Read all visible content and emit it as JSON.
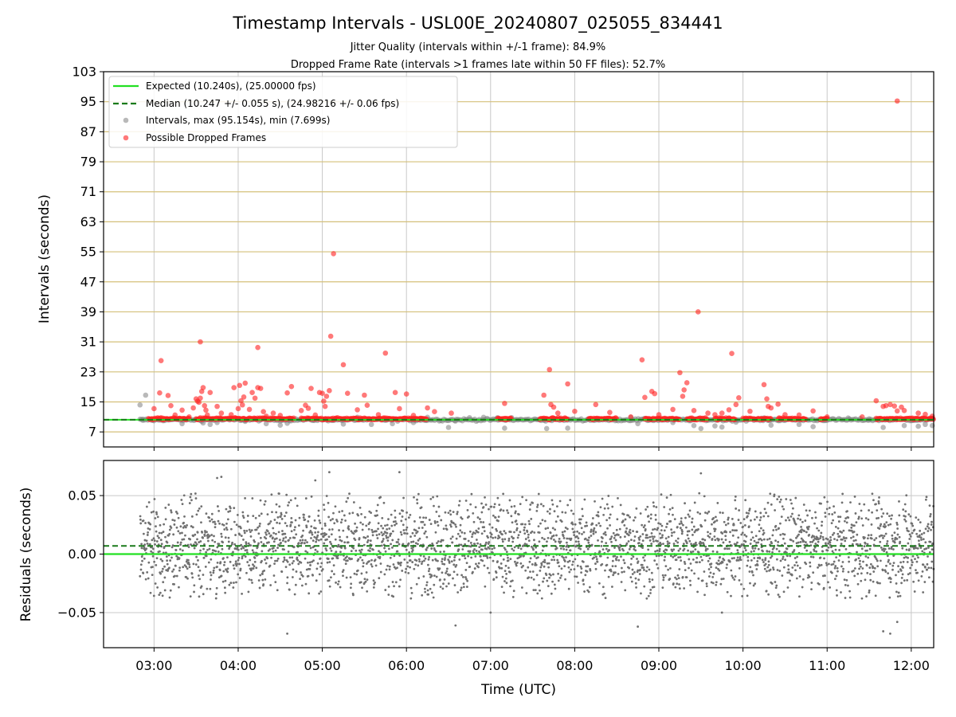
{
  "chart_data": [
    {
      "type": "scatter",
      "title": "Timestamp Intervals - USL00E_20240807_025055_834441",
      "subtitle_lines": [
        "Jitter Quality (intervals within +/-1 frame): 84.9%",
        "Dropped Frame Rate (intervals >1 frames late within 50 FF files): 52.7%"
      ],
      "xlabel": "",
      "ylabel": "Intervals (seconds)",
      "xlim": [
        "02:24",
        "12:16"
      ],
      "ylim": [
        3,
        103
      ],
      "yticks": [
        7,
        15,
        23,
        31,
        39,
        47,
        55,
        63,
        71,
        79,
        87,
        95,
        103
      ],
      "ytick_labels": [
        "7",
        "15",
        "23",
        "31",
        "39",
        "47",
        "55",
        "63",
        "71",
        "79",
        "87",
        "95",
        "103"
      ],
      "grid": true,
      "horizontal_lines": {
        "values": [
          7,
          15,
          23,
          31,
          39,
          47,
          55,
          63,
          71,
          79,
          87,
          95
        ],
        "color": "#d4c07a"
      },
      "legend": {
        "position": "upper-left",
        "entries": [
          {
            "label": "Expected (10.240s), (25.00000 fps)",
            "kind": "solid-line",
            "color": "#22e022"
          },
          {
            "label": "Median (10.247 +/- 0.055 s), (24.98216 +/- 0.06 fps)",
            "kind": "dashed-line",
            "color": "#1a7a1a"
          },
          {
            "label": "Intervals, max (95.154s), min (7.699s)",
            "kind": "marker",
            "color": "#808080"
          },
          {
            "label": "Possible Dropped Frames",
            "kind": "marker",
            "color": "#ff2020"
          }
        ]
      },
      "reference_lines": {
        "expected": 10.24,
        "median": 10.247
      },
      "series": [
        {
          "name": "Intervals, max (95.154s), min (7.699s)",
          "color": "#808080",
          "points": [
            [
              "02:50",
              14.2
            ],
            [
              "02:54",
              16.8
            ],
            [
              "02:52",
              10.1
            ],
            [
              "03:00",
              10.0
            ],
            [
              "03:20",
              9.2
            ],
            [
              "03:35",
              9.4
            ],
            [
              "03:40",
              9.0
            ],
            [
              "03:45",
              9.5
            ],
            [
              "04:05",
              9.8
            ],
            [
              "04:20",
              9.2
            ],
            [
              "04:30",
              8.8
            ],
            [
              "04:35",
              9.3
            ],
            [
              "05:15",
              9.1
            ],
            [
              "05:25",
              10.9
            ],
            [
              "05:35",
              9.0
            ],
            [
              "05:50",
              9.2
            ],
            [
              "06:05",
              9.5
            ],
            [
              "06:15",
              10.9
            ],
            [
              "06:30",
              8.2
            ],
            [
              "06:35",
              9.9
            ],
            [
              "06:45",
              10.8
            ],
            [
              "06:55",
              10.9
            ],
            [
              "07:05",
              10.8
            ],
            [
              "07:10",
              8.0
            ],
            [
              "07:15",
              10.8
            ],
            [
              "07:40",
              7.9
            ],
            [
              "07:55",
              8.0
            ],
            [
              "08:10",
              10.5
            ],
            [
              "08:25",
              10.4
            ],
            [
              "08:40",
              10.9
            ],
            [
              "08:45",
              9.2
            ],
            [
              "09:10",
              9.5
            ],
            [
              "09:25",
              8.7
            ],
            [
              "09:30",
              7.9
            ],
            [
              "09:40",
              8.6
            ],
            [
              "09:45",
              8.3
            ],
            [
              "09:55",
              9.6
            ],
            [
              "10:05",
              10.5
            ],
            [
              "10:15",
              10.7
            ],
            [
              "10:20",
              8.8
            ],
            [
              "10:40",
              9.0
            ],
            [
              "10:50",
              8.4
            ],
            [
              "11:00",
              10.6
            ],
            [
              "11:15",
              10.7
            ],
            [
              "11:30",
              10.5
            ],
            [
              "11:40",
              8.2
            ],
            [
              "11:55",
              8.7
            ],
            [
              "12:05",
              8.5
            ],
            [
              "12:10",
              9.0
            ],
            [
              "12:15",
              8.7
            ]
          ]
        },
        {
          "name": "Possible Dropped Frames",
          "color": "#ff2020",
          "band": {
            "value": 10.5,
            "segments": [
              [
                "02:56",
                "03:25"
              ],
              [
                "03:30",
                "04:40"
              ],
              [
                "04:45",
                "06:15"
              ],
              [
                "07:05",
                "07:15"
              ],
              [
                "07:35",
                "07:55"
              ],
              [
                "08:10",
                "08:30"
              ],
              [
                "08:50",
                "09:15"
              ],
              [
                "09:20",
                "09:35"
              ],
              [
                "09:40",
                "09:55"
              ],
              [
                "10:00",
                "10:20"
              ],
              [
                "10:25",
                "10:45"
              ],
              [
                "10:55",
                "11:00"
              ],
              [
                "11:35",
                "12:16"
              ]
            ]
          },
          "points": [
            [
              "03:05",
              26.0
            ],
            [
              "03:04",
              17.4
            ],
            [
              "03:10",
              16.7
            ],
            [
              "03:12",
              14.0
            ],
            [
              "03:00",
              13.2
            ],
            [
              "03:15",
              11.5
            ],
            [
              "03:20",
              12.8
            ],
            [
              "03:25",
              11.0
            ],
            [
              "03:28",
              13.4
            ],
            [
              "03:30",
              15.8
            ],
            [
              "03:31",
              15.2
            ],
            [
              "03:32",
              14.9
            ],
            [
              "03:33",
              16.0
            ],
            [
              "03:34",
              17.8
            ],
            [
              "03:35",
              18.8
            ],
            [
              "03:36",
              14.0
            ],
            [
              "03:37",
              12.8
            ],
            [
              "03:38",
              11.5
            ],
            [
              "03:33",
              31.0
            ],
            [
              "03:40",
              17.5
            ],
            [
              "03:45",
              13.8
            ],
            [
              "03:48",
              12.0
            ],
            [
              "03:55",
              11.6
            ],
            [
              "04:00",
              13.2
            ],
            [
              "03:57",
              18.8
            ],
            [
              "04:01",
              19.4
            ],
            [
              "04:02",
              15.3
            ],
            [
              "04:03",
              14.2
            ],
            [
              "04:04",
              16.3
            ],
            [
              "04:05",
              20.0
            ],
            [
              "04:08",
              13.0
            ],
            [
              "04:10",
              17.5
            ],
            [
              "04:12",
              16.0
            ],
            [
              "04:14",
              18.8
            ],
            [
              "04:16",
              18.6
            ],
            [
              "04:18",
              12.4
            ],
            [
              "04:20",
              11.2
            ],
            [
              "04:25",
              12.0
            ],
            [
              "04:14",
              29.5
            ],
            [
              "04:30",
              11.4
            ],
            [
              "04:35",
              17.4
            ],
            [
              "04:38",
              19.1
            ],
            [
              "04:45",
              12.7
            ],
            [
              "04:48",
              14.1
            ],
            [
              "04:50",
              13.3
            ],
            [
              "04:52",
              18.6
            ],
            [
              "04:55",
              11.5
            ],
            [
              "04:58",
              17.5
            ],
            [
              "05:00",
              17.3
            ],
            [
              "05:01",
              15.2
            ],
            [
              "05:02",
              13.8
            ],
            [
              "05:03",
              16.5
            ],
            [
              "05:05",
              18.0
            ],
            [
              "05:06",
              32.5
            ],
            [
              "05:08",
              54.5
            ],
            [
              "05:15",
              24.9
            ],
            [
              "05:18",
              17.3
            ],
            [
              "05:25",
              12.9
            ],
            [
              "05:30",
              16.8
            ],
            [
              "05:32",
              14.1
            ],
            [
              "05:40",
              11.6
            ],
            [
              "05:45",
              28.0
            ],
            [
              "05:52",
              17.5
            ],
            [
              "05:55",
              13.2
            ],
            [
              "06:00",
              17.1
            ],
            [
              "06:05",
              11.4
            ],
            [
              "06:15",
              13.4
            ],
            [
              "06:20",
              12.4
            ],
            [
              "06:32",
              12.0
            ],
            [
              "07:10",
              14.6
            ],
            [
              "07:38",
              16.8
            ],
            [
              "07:42",
              23.6
            ],
            [
              "07:43",
              14.3
            ],
            [
              "07:45",
              13.6
            ],
            [
              "07:48",
              12.0
            ],
            [
              "07:55",
              19.8
            ],
            [
              "08:00",
              12.5
            ],
            [
              "08:15",
              14.3
            ],
            [
              "08:25",
              12.2
            ],
            [
              "08:40",
              11.0
            ],
            [
              "08:48",
              26.2
            ],
            [
              "08:50",
              16.2
            ],
            [
              "08:55",
              17.8
            ],
            [
              "08:57",
              17.2
            ],
            [
              "09:00",
              11.6
            ],
            [
              "09:10",
              13.0
            ],
            [
              "09:15",
              22.8
            ],
            [
              "09:17",
              16.5
            ],
            [
              "09:18",
              18.2
            ],
            [
              "09:20",
              20.1
            ],
            [
              "09:25",
              12.7
            ],
            [
              "09:28",
              39.0
            ],
            [
              "09:35",
              12.0
            ],
            [
              "09:40",
              11.6
            ],
            [
              "09:45",
              12.0
            ],
            [
              "09:50",
              12.9
            ],
            [
              "09:52",
              27.9
            ],
            [
              "09:55",
              14.3
            ],
            [
              "09:57",
              16.1
            ],
            [
              "10:05",
              12.5
            ],
            [
              "10:15",
              19.6
            ],
            [
              "10:17",
              15.8
            ],
            [
              "10:18",
              13.8
            ],
            [
              "10:20",
              13.4
            ],
            [
              "10:25",
              14.4
            ],
            [
              "10:30",
              11.6
            ],
            [
              "10:40",
              11.5
            ],
            [
              "10:50",
              12.6
            ],
            [
              "11:00",
              11.0
            ],
            [
              "11:25",
              11.0
            ],
            [
              "11:35",
              15.3
            ],
            [
              "11:40",
              13.8
            ],
            [
              "11:42",
              14.0
            ],
            [
              "11:45",
              14.3
            ],
            [
              "11:48",
              13.9
            ],
            [
              "11:50",
              12.6
            ],
            [
              "11:53",
              13.6
            ],
            [
              "11:55",
              12.7
            ],
            [
              "11:50",
              95.2
            ],
            [
              "12:05",
              12.0
            ],
            [
              "12:10",
              11.7
            ],
            [
              "12:15",
              11.2
            ]
          ]
        }
      ]
    },
    {
      "type": "scatter",
      "title": "",
      "xlabel": "Time (UTC)",
      "ylabel": "Residuals (seconds)",
      "xlim": [
        "02:24",
        "12:16"
      ],
      "ylim": [
        -0.08,
        0.08
      ],
      "yticks": [
        -0.05,
        0.0,
        0.05
      ],
      "ytick_labels": [
        "−0.05",
        "0.00",
        "0.05"
      ],
      "xticks": [
        "03:00",
        "04:00",
        "05:00",
        "06:00",
        "07:00",
        "08:00",
        "09:00",
        "10:00",
        "11:00",
        "12:00"
      ],
      "grid": true,
      "reference_lines": {
        "expected": 0.0,
        "median": 0.007
      },
      "series": [
        {
          "name": "",
          "color": "#707070",
          "x_range": [
            "02:50",
            "12:16"
          ],
          "y_spread": 0.045,
          "outliers": [
            [
              "03:45",
              0.065
            ],
            [
              "03:48",
              0.066
            ],
            [
              "05:05",
              0.07
            ],
            [
              "05:55",
              0.07
            ],
            [
              "04:35",
              -0.068
            ],
            [
              "06:35",
              -0.061
            ],
            [
              "08:45",
              -0.062
            ],
            [
              "11:40",
              -0.066
            ],
            [
              "11:45",
              -0.068
            ],
            [
              "11:50",
              -0.058
            ],
            [
              "09:30",
              0.069
            ],
            [
              "07:00",
              -0.05
            ],
            [
              "09:45",
              -0.05
            ],
            [
              "04:55",
              0.063
            ]
          ]
        }
      ]
    }
  ]
}
